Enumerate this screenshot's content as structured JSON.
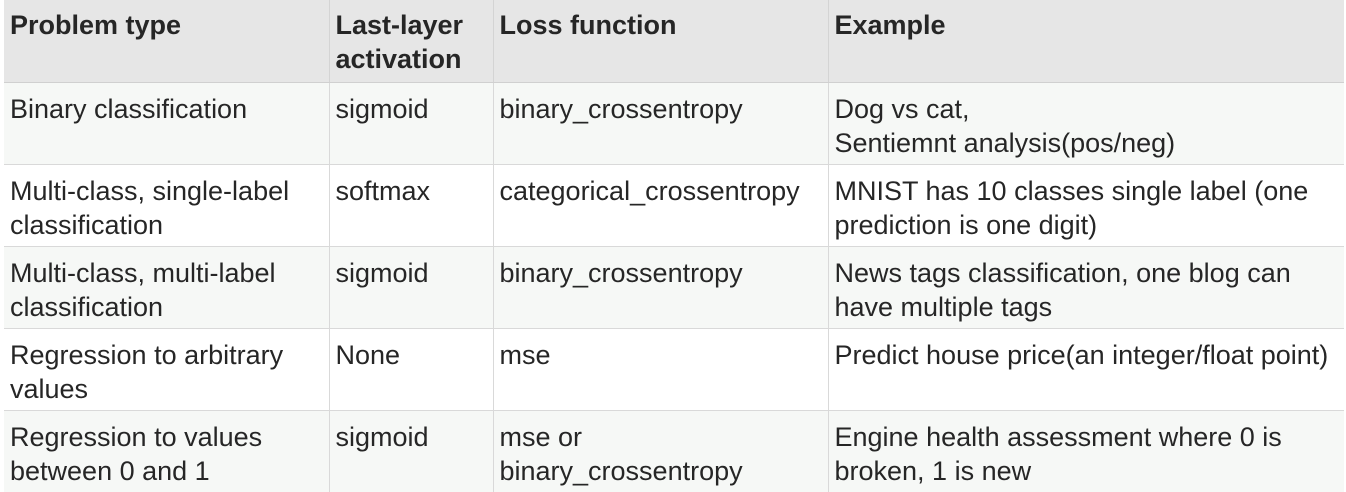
{
  "table": {
    "headers": [
      "Problem type",
      "Last-layer\nactivation",
      "Loss function",
      "Example"
    ],
    "rows": [
      {
        "problem_type": "Binary classification",
        "activation": "sigmoid",
        "loss": "binary_crossentropy",
        "example": "Dog vs cat,\nSentiemnt analysis(pos/neg)"
      },
      {
        "problem_type": "Multi-class, single-label classification",
        "activation": "softmax",
        "loss": "categorical_crossentropy",
        "example": "MNIST has 10 classes single label (one prediction is one digit)"
      },
      {
        "problem_type": "Multi-class, multi-label classification",
        "activation": "sigmoid",
        "loss": "binary_crossentropy",
        "example": "News tags classification, one blog can have multiple tags"
      },
      {
        "problem_type": "Regression to arbitrary values",
        "activation": "None",
        "loss": "mse",
        "example": "Predict house price(an integer/float point)"
      },
      {
        "problem_type": "Regression to values between 0 and 1",
        "activation": "sigmoid",
        "loss": "mse or\nbinary_crossentropy",
        "example": "Engine health assessment where 0 is broken, 1 is new"
      }
    ]
  }
}
